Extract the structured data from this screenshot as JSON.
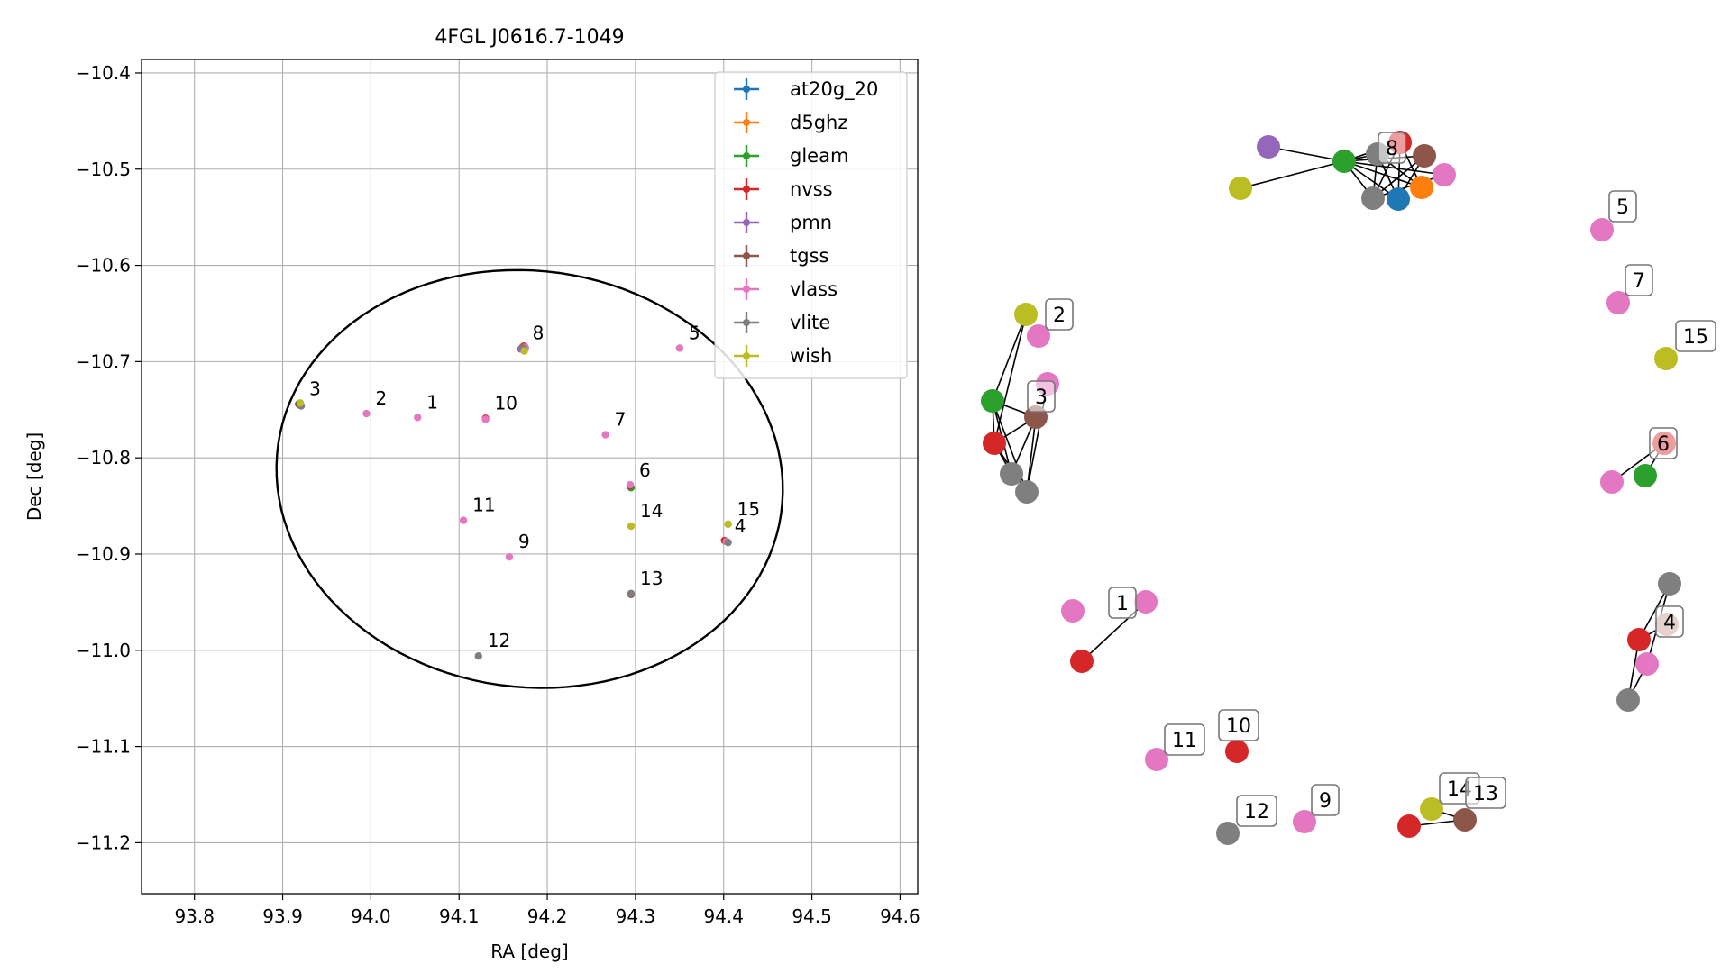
{
  "chart_data": [
    {
      "type": "scatter",
      "title": "4FGL J0616.7-1049",
      "xlabel": "RA [deg]",
      "ylabel": "Dec [deg]",
      "xlim": [
        93.74,
        94.62
      ],
      "ylim": [
        -11.253,
        -10.386
      ],
      "x_ticks": [
        93.8,
        93.9,
        94.0,
        94.1,
        94.2,
        94.3,
        94.4,
        94.5,
        94.6
      ],
      "x_tick_labels": [
        "93.8",
        "93.9",
        "94.0",
        "94.1",
        "94.2",
        "94.3",
        "94.4",
        "94.5",
        "94.6"
      ],
      "y_ticks": [
        -10.4,
        -10.5,
        -10.6,
        -10.7,
        -10.8,
        -10.9,
        -11.0,
        -11.1,
        -11.2
      ],
      "y_tick_labels": [
        "−10.4",
        "−10.5",
        "−10.6",
        "−10.7",
        "−10.8",
        "−10.9",
        "−11.0",
        "−11.1",
        "−11.2"
      ],
      "grid": true,
      "legend_position": "top-right",
      "ellipse": {
        "center": [
          94.18,
          -10.822
        ],
        "semi_axis_ra": 0.2875,
        "semi_axis_dec": 0.2165,
        "angle_deg": -5,
        "color": "#000000"
      },
      "series": [
        {
          "name": "at20g_20",
          "color": "#1f77b4",
          "points": [
            [
              94.172,
              -10.685
            ]
          ]
        },
        {
          "name": "d5ghz",
          "color": "#ff7f0e",
          "points": [
            [
              94.173,
              -10.684
            ]
          ]
        },
        {
          "name": "gleam",
          "color": "#2ca02c",
          "points": [
            [
              94.171,
              -10.686
            ],
            [
              93.918,
              -10.744
            ],
            [
              94.295,
              -10.831
            ]
          ]
        },
        {
          "name": "nvss",
          "color": "#d62728",
          "points": [
            [
              94.174,
              -10.684
            ],
            [
              93.919,
              -10.745
            ],
            [
              94.13,
              -10.759
            ],
            [
              94.401,
              -10.886
            ],
            [
              94.294,
              -10.829
            ]
          ]
        },
        {
          "name": "pmn",
          "color": "#9467bd",
          "points": [
            [
              94.17,
              -10.687
            ]
          ]
        },
        {
          "name": "tgss",
          "color": "#8c564b",
          "points": [
            [
              94.175,
              -10.686
            ],
            [
              93.92,
              -10.745
            ],
            [
              94.295,
              -10.942
            ]
          ]
        },
        {
          "name": "vlass",
          "color": "#e377c2",
          "points": [
            [
              94.175,
              -10.685
            ],
            [
              93.995,
              -10.754
            ],
            [
              94.053,
              -10.758
            ],
            [
              94.13,
              -10.76
            ],
            [
              94.35,
              -10.686
            ],
            [
              94.266,
              -10.776
            ],
            [
              94.294,
              -10.828
            ],
            [
              94.403,
              -10.887
            ],
            [
              94.105,
              -10.865
            ],
            [
              94.157,
              -10.903
            ]
          ]
        },
        {
          "name": "vlite",
          "color": "#7f7f7f",
          "points": [
            [
              94.173,
              -10.686
            ],
            [
              93.921,
              -10.746
            ],
            [
              94.405,
              -10.888
            ],
            [
              94.295,
              -10.941
            ],
            [
              94.122,
              -11.006
            ]
          ]
        },
        {
          "name": "wish",
          "color": "#bcbd22",
          "points": [
            [
              94.174,
              -10.689
            ],
            [
              93.92,
              -10.743
            ],
            [
              94.295,
              -10.871
            ],
            [
              94.405,
              -10.869
            ]
          ]
        }
      ],
      "annotations": [
        {
          "text": "1",
          "x": 94.053,
          "y": -10.758
        },
        {
          "text": "2",
          "x": 93.995,
          "y": -10.754
        },
        {
          "text": "3",
          "x": 93.92,
          "y": -10.744
        },
        {
          "text": "4",
          "x": 94.402,
          "y": -10.887
        },
        {
          "text": "5",
          "x": 94.35,
          "y": -10.686
        },
        {
          "text": "6",
          "x": 94.294,
          "y": -10.829
        },
        {
          "text": "7",
          "x": 94.266,
          "y": -10.776
        },
        {
          "text": "8",
          "x": 94.173,
          "y": -10.686
        },
        {
          "text": "9",
          "x": 94.157,
          "y": -10.903
        },
        {
          "text": "10",
          "x": 94.13,
          "y": -10.759
        },
        {
          "text": "11",
          "x": 94.105,
          "y": -10.865
        },
        {
          "text": "12",
          "x": 94.122,
          "y": -11.006
        },
        {
          "text": "13",
          "x": 94.295,
          "y": -10.941
        },
        {
          "text": "14",
          "x": 94.295,
          "y": -10.871
        },
        {
          "text": "15",
          "x": 94.405,
          "y": -10.869
        }
      ]
    }
  ],
  "network": {
    "nodes": [
      {
        "id": "n8_green",
        "color": "#2ca02c"
      },
      {
        "id": "n8_purple",
        "color": "#9467bd"
      },
      {
        "id": "n8_olive",
        "color": "#bcbd22"
      },
      {
        "id": "n8_gray_a",
        "color": "#7f7f7f"
      },
      {
        "id": "n8_red",
        "color": "#d62728"
      },
      {
        "id": "n8_brown",
        "color": "#8c564b"
      },
      {
        "id": "n8_pink",
        "color": "#e377c2"
      },
      {
        "id": "n8_orange",
        "color": "#ff7f0e"
      },
      {
        "id": "n8_blue",
        "color": "#1f77b4"
      },
      {
        "id": "n8_gray_b",
        "color": "#7f7f7f"
      },
      {
        "id": "n5_pink",
        "color": "#e377c2"
      },
      {
        "id": "n7_pink",
        "color": "#e377c2"
      },
      {
        "id": "n15_olive",
        "color": "#bcbd22"
      },
      {
        "id": "n2_olive",
        "color": "#bcbd22"
      },
      {
        "id": "n2_pink",
        "color": "#e377c2"
      },
      {
        "id": "n3_pink",
        "color": "#e377c2"
      },
      {
        "id": "n3_green",
        "color": "#2ca02c"
      },
      {
        "id": "n3_brown",
        "color": "#8c564b"
      },
      {
        "id": "n3_red",
        "color": "#d62728"
      },
      {
        "id": "n3_gray_a",
        "color": "#7f7f7f"
      },
      {
        "id": "n3_gray_b",
        "color": "#7f7f7f"
      },
      {
        "id": "n6_red",
        "color": "#d62728"
      },
      {
        "id": "n6_pink",
        "color": "#e377c2"
      },
      {
        "id": "n6_green",
        "color": "#2ca02c"
      },
      {
        "id": "n4_gray_a",
        "color": "#7f7f7f"
      },
      {
        "id": "n4_tan",
        "color": "#c59b8f"
      },
      {
        "id": "n4_red",
        "color": "#d62728"
      },
      {
        "id": "n4_pink",
        "color": "#e377c2"
      },
      {
        "id": "n4_gray_b",
        "color": "#7f7f7f"
      },
      {
        "id": "n1_pink_a",
        "color": "#e377c2"
      },
      {
        "id": "n1_pink_b",
        "color": "#e377c2"
      },
      {
        "id": "n1_red",
        "color": "#d62728"
      },
      {
        "id": "n11_pink",
        "color": "#e377c2"
      },
      {
        "id": "n10_red",
        "color": "#d62728"
      },
      {
        "id": "n12_gray",
        "color": "#7f7f7f"
      },
      {
        "id": "n9_pink",
        "color": "#e377c2"
      },
      {
        "id": "n14_olive",
        "color": "#bcbd22"
      },
      {
        "id": "n14_red",
        "color": "#d62728"
      },
      {
        "id": "n13_brown",
        "color": "#8c564b"
      }
    ],
    "edges": [
      [
        "n8_purple",
        "n8_green"
      ],
      [
        "n8_olive",
        "n8_green"
      ],
      [
        "n8_green",
        "n8_gray_a"
      ],
      [
        "n8_green",
        "n8_red"
      ],
      [
        "n8_green",
        "n8_brown"
      ],
      [
        "n8_green",
        "n8_pink"
      ],
      [
        "n8_green",
        "n8_orange"
      ],
      [
        "n8_green",
        "n8_blue"
      ],
      [
        "n8_green",
        "n8_gray_b"
      ],
      [
        "n8_gray_a",
        "n8_blue"
      ],
      [
        "n8_gray_a",
        "n8_orange"
      ],
      [
        "n8_red",
        "n8_gray_b"
      ],
      [
        "n8_red",
        "n8_blue"
      ],
      [
        "n8_brown",
        "n8_gray_b"
      ],
      [
        "n8_brown",
        "n8_blue"
      ],
      [
        "n8_pink",
        "n8_gray_b"
      ],
      [
        "n8_gray_a",
        "n8_gray_b"
      ],
      [
        "n8_red",
        "n8_orange"
      ],
      [
        "n2_olive",
        "n3_green"
      ],
      [
        "n2_olive",
        "n3_red"
      ],
      [
        "n3_green",
        "n3_brown"
      ],
      [
        "n3_green",
        "n3_red"
      ],
      [
        "n3_green",
        "n3_gray_a"
      ],
      [
        "n3_green",
        "n3_gray_b"
      ],
      [
        "n3_pink",
        "n3_gray_b"
      ],
      [
        "n3_brown",
        "n3_red"
      ],
      [
        "n3_brown",
        "n3_gray_a"
      ],
      [
        "n3_brown",
        "n3_gray_b"
      ],
      [
        "n3_red",
        "n3_gray_a"
      ],
      [
        "n3_red",
        "n3_gray_b"
      ],
      [
        "n6_pink",
        "n6_red"
      ],
      [
        "n6_green",
        "n6_red"
      ],
      [
        "n4_gray_a",
        "n4_red"
      ],
      [
        "n4_gray_a",
        "n4_pink"
      ],
      [
        "n4_red",
        "n4_gray_b"
      ],
      [
        "n4_pink",
        "n4_gray_b"
      ],
      [
        "n4_tan",
        "n4_red"
      ],
      [
        "n1_red",
        "n1_pink_b"
      ],
      [
        "n14_olive",
        "n13_brown"
      ],
      [
        "n14_red",
        "n13_brown"
      ]
    ],
    "labels": [
      {
        "text": "8"
      },
      {
        "text": "5"
      },
      {
        "text": "7"
      },
      {
        "text": "15"
      },
      {
        "text": "2"
      },
      {
        "text": "3"
      },
      {
        "text": "6"
      },
      {
        "text": "4"
      },
      {
        "text": "1"
      },
      {
        "text": "11"
      },
      {
        "text": "10"
      },
      {
        "text": "12"
      },
      {
        "text": "9"
      },
      {
        "text": "14"
      },
      {
        "text": "13"
      }
    ]
  }
}
